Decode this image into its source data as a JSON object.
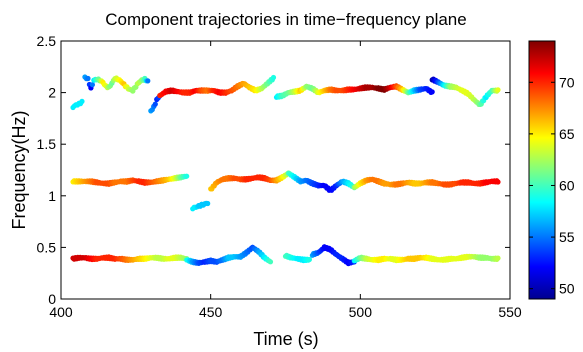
{
  "chart_data": {
    "type": "scatter",
    "title": "Component trajectories in time−frequency plane",
    "xlabel": "Time (s)",
    "ylabel": "Frequency(Hz)",
    "xlim": [
      400,
      550
    ],
    "ylim": [
      0,
      2.5
    ],
    "x_ticks": [
      400,
      450,
      500,
      550
    ],
    "x_tick_labels": [
      "400",
      "450",
      "500",
      "550"
    ],
    "y_ticks": [
      0,
      0.5,
      1,
      1.5,
      2,
      2.5
    ],
    "y_tick_labels": [
      "0",
      "0.5",
      "1",
      "1.5",
      "2",
      "2.5"
    ],
    "grid": false,
    "colorbar": {
      "colormap": "jet",
      "range": [
        49,
        74
      ],
      "ticks": [
        50,
        55,
        60,
        65,
        70
      ],
      "tick_labels": [
        "50",
        "55",
        "60",
        "65",
        "70"
      ]
    },
    "series": [
      {
        "x": [
          404,
          405,
          406,
          407
        ],
        "y": [
          1.86,
          1.88,
          1.89,
          1.91
        ],
        "c": [
          58,
          58,
          58,
          58
        ]
      },
      {
        "x": [
          408,
          409,
          410,
          411,
          412,
          413,
          414,
          415,
          416,
          417,
          418,
          419,
          420,
          421,
          422,
          423,
          424,
          425,
          426,
          427,
          428,
          429
        ],
        "y": [
          2.15,
          2.13,
          2.04,
          2.12,
          2.13,
          2.12,
          2.1,
          2.06,
          2.05,
          2.09,
          2.14,
          2.13,
          2.11,
          2.08,
          2.05,
          2.03,
          2.02,
          2.06,
          2.1,
          2.12,
          2.13,
          2.11
        ],
        "c": [
          56,
          55,
          52,
          58,
          60,
          62,
          65,
          64,
          62,
          61,
          63,
          64,
          65,
          66,
          64,
          63,
          62,
          62,
          63,
          62,
          60,
          55
        ]
      },
      {
        "x": [
          430,
          431,
          432,
          433
        ],
        "y": [
          1.82,
          1.86,
          1.93,
          1.97
        ],
        "c": [
          56,
          55,
          53,
          54
        ]
      },
      {
        "x": [
          433,
          435,
          437,
          439,
          441,
          443,
          445,
          447,
          449,
          451,
          453,
          455,
          457,
          459,
          461,
          463,
          465,
          467,
          469,
          471
        ],
        "y": [
          1.97,
          2.01,
          2.02,
          2.01,
          2.0,
          2.0,
          2.02,
          2.02,
          2.02,
          2.02,
          2.0,
          2.0,
          2.02,
          2.06,
          2.09,
          2.05,
          2.02,
          2.04,
          2.09,
          2.14
        ],
        "c": [
          70,
          71,
          72,
          71,
          70,
          70,
          71,
          69,
          68,
          70,
          71,
          70,
          69,
          68,
          67,
          66,
          65,
          63,
          61,
          59
        ]
      },
      {
        "x": [
          472,
          474,
          476,
          478,
          480,
          482,
          484,
          486,
          488,
          490,
          492,
          494,
          496,
          498,
          500,
          502,
          504,
          506,
          508,
          510,
          512,
          514,
          516,
          518,
          520,
          522,
          524
        ],
        "y": [
          1.96,
          1.97,
          2.0,
          2.01,
          2.02,
          2.06,
          2.04,
          2.0,
          2.02,
          2.03,
          2.02,
          2.02,
          2.03,
          2.03,
          2.04,
          2.05,
          2.05,
          2.04,
          2.03,
          2.05,
          2.06,
          2.03,
          2.0,
          2.02,
          2.03,
          2.04,
          2.0
        ],
        "c": [
          58,
          60,
          61,
          63,
          66,
          62,
          61,
          64,
          66,
          68,
          69,
          69,
          70,
          71,
          72,
          73,
          73,
          74,
          74,
          72,
          69,
          66,
          61,
          57,
          54,
          53,
          52
        ]
      },
      {
        "x": [
          524,
          526,
          528,
          530,
          532,
          534,
          536,
          538,
          540,
          542,
          544,
          546
        ],
        "y": [
          2.13,
          2.1,
          2.07,
          2.06,
          2.05,
          2.02,
          1.99,
          1.93,
          1.88,
          1.96,
          2.02,
          2.02
        ],
        "c": [
          50,
          54,
          58,
          62,
          63,
          64,
          64,
          63,
          61,
          58,
          60,
          64
        ]
      },
      {
        "x": [
          404,
          406,
          408,
          410,
          412,
          414,
          416,
          418,
          420,
          422,
          424,
          426,
          428,
          430,
          432,
          434,
          436,
          438,
          440,
          442
        ],
        "y": [
          1.14,
          1.14,
          1.14,
          1.14,
          1.13,
          1.12,
          1.12,
          1.13,
          1.14,
          1.14,
          1.15,
          1.14,
          1.13,
          1.13,
          1.14,
          1.15,
          1.16,
          1.17,
          1.18,
          1.19
        ],
        "c": [
          65,
          66,
          67,
          68,
          69,
          69,
          69,
          68,
          68,
          68,
          69,
          70,
          70,
          69,
          68,
          67,
          66,
          64,
          61,
          59
        ]
      },
      {
        "x": [
          444,
          445,
          446,
          447,
          448,
          449
        ],
        "y": [
          0.88,
          0.89,
          0.9,
          0.91,
          0.92,
          0.93
        ],
        "c": [
          58,
          58,
          57,
          57,
          57,
          57
        ]
      },
      {
        "x": [
          450,
          452,
          454,
          456,
          458,
          460,
          462,
          464,
          466,
          468,
          470,
          472,
          474,
          476
        ],
        "y": [
          1.06,
          1.13,
          1.16,
          1.17,
          1.17,
          1.16,
          1.16,
          1.17,
          1.18,
          1.17,
          1.15,
          1.15,
          1.18,
          1.22
        ],
        "c": [
          66,
          67,
          68,
          68,
          69,
          69,
          70,
          70,
          70,
          70,
          69,
          67,
          65,
          62
        ]
      },
      {
        "x": [
          476,
          478,
          480,
          482,
          484,
          486,
          488,
          490,
          492,
          494,
          496,
          498
        ],
        "y": [
          1.22,
          1.18,
          1.14,
          1.15,
          1.12,
          1.1,
          1.1,
          1.05,
          1.1,
          1.14,
          1.12,
          1.08
        ],
        "c": [
          60,
          58,
          56,
          55,
          54,
          53,
          52,
          52,
          53,
          56,
          58,
          60
        ]
      },
      {
        "x": [
          498,
          500,
          502,
          504,
          506,
          508,
          510,
          512,
          514,
          516,
          518,
          520,
          522,
          524,
          526,
          528,
          530,
          532,
          534,
          536,
          538,
          540,
          542,
          544,
          546
        ],
        "y": [
          1.08,
          1.12,
          1.15,
          1.16,
          1.14,
          1.12,
          1.11,
          1.11,
          1.12,
          1.13,
          1.12,
          1.12,
          1.13,
          1.13,
          1.12,
          1.11,
          1.11,
          1.12,
          1.13,
          1.13,
          1.12,
          1.12,
          1.13,
          1.14,
          1.14
        ],
        "c": [
          62,
          65,
          67,
          68,
          68,
          67,
          67,
          68,
          68,
          67,
          66,
          66,
          67,
          68,
          68,
          69,
          69,
          69,
          70,
          70,
          70,
          70,
          71,
          71,
          71
        ]
      },
      {
        "x": [
          404,
          406,
          408,
          410,
          412,
          414,
          416,
          418,
          420,
          422,
          424,
          426,
          428,
          430,
          432,
          434,
          436,
          438,
          440,
          442
        ],
        "y": [
          0.39,
          0.4,
          0.4,
          0.39,
          0.39,
          0.4,
          0.4,
          0.39,
          0.39,
          0.38,
          0.38,
          0.39,
          0.39,
          0.4,
          0.4,
          0.39,
          0.39,
          0.4,
          0.4,
          0.39
        ],
        "c": [
          72,
          72,
          72,
          71,
          70,
          70,
          70,
          70,
          69,
          68,
          67,
          66,
          65,
          64,
          63,
          63,
          64,
          64,
          63,
          62
        ]
      },
      {
        "x": [
          442,
          444,
          446,
          448,
          450,
          452,
          454,
          456,
          458,
          460,
          462,
          464,
          466,
          468,
          470
        ],
        "y": [
          0.38,
          0.36,
          0.35,
          0.36,
          0.37,
          0.36,
          0.38,
          0.4,
          0.41,
          0.41,
          0.45,
          0.5,
          0.46,
          0.4,
          0.36
        ],
        "c": [
          59,
          56,
          54,
          53,
          54,
          54,
          55,
          57,
          57,
          56,
          55,
          54,
          56,
          58,
          60
        ]
      },
      {
        "x": [
          475,
          477,
          479,
          481,
          483
        ],
        "y": [
          0.42,
          0.4,
          0.39,
          0.38,
          0.38
        ],
        "c": [
          60,
          59,
          58,
          58,
          59
        ]
      },
      {
        "x": [
          484,
          486,
          488,
          490,
          492,
          494,
          496,
          498
        ],
        "y": [
          0.43,
          0.45,
          0.5,
          0.48,
          0.43,
          0.39,
          0.35,
          0.36
        ],
        "c": [
          56,
          54,
          52,
          52,
          53,
          53,
          52,
          53
        ]
      },
      {
        "x": [
          498,
          500,
          502,
          504,
          506,
          508,
          510,
          512,
          514,
          516,
          518,
          520,
          522,
          524,
          526,
          528,
          530,
          532,
          534,
          536,
          538,
          540,
          542,
          544,
          546
        ],
        "y": [
          0.37,
          0.4,
          0.39,
          0.38,
          0.38,
          0.39,
          0.39,
          0.38,
          0.38,
          0.39,
          0.39,
          0.4,
          0.4,
          0.39,
          0.38,
          0.38,
          0.39,
          0.39,
          0.4,
          0.41,
          0.41,
          0.4,
          0.4,
          0.39,
          0.39
        ],
        "c": [
          58,
          61,
          63,
          64,
          65,
          65,
          64,
          64,
          65,
          66,
          66,
          66,
          65,
          64,
          64,
          64,
          64,
          64,
          64,
          64,
          63,
          62,
          62,
          62,
          63
        ]
      }
    ]
  }
}
